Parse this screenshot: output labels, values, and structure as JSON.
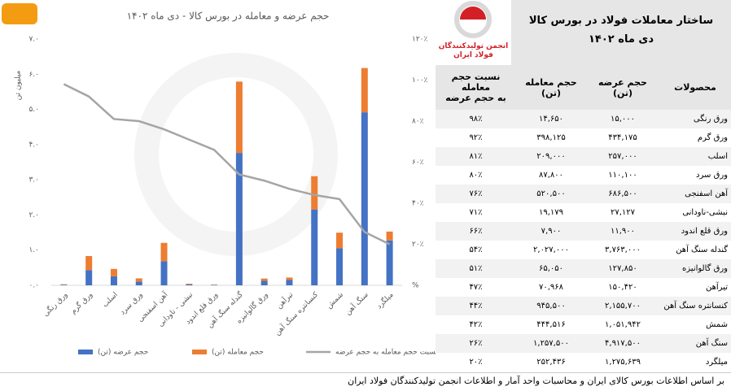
{
  "chart_data": {
    "type": "bar",
    "stacked": true,
    "title": "حجم عرضه و معامله در بورس کالا - دی ماه ۱۴۰۲",
    "ylabel": "میلیون تن",
    "categories": [
      "ورق رنگی",
      "ورق گرم",
      "اسلب",
      "ورق سرد",
      "آهن اسفنجی",
      "نبشی - ناودانی",
      "ورق قلع اندود",
      "گندله سنگ آهن",
      "ورق گالوانیزه",
      "تیرآهن",
      "کنسانتره سنگ آهن",
      "شمش",
      "سنگ آهن",
      "میلگرد"
    ],
    "series": [
      {
        "name": "حجم عرضه (تن)",
        "color": "#4472c4",
        "values": [
          0.015,
          0.434175,
          0.257,
          0.1101,
          0.6865,
          0.027127,
          0.0119,
          3.763,
          0.12785,
          0.15042,
          2.1557,
          1.051942,
          4.9175,
          1.275639
        ]
      },
      {
        "name": "حجم معامله (تن)",
        "color": "#ed7d31",
        "values": [
          0.01465,
          0.398125,
          0.209,
          0.0878,
          0.5205,
          0.019179,
          0.0079,
          2.027,
          0.06505,
          0.070968,
          0.9455,
          0.444516,
          1.2575,
          0.252436
        ]
      },
      {
        "name": "نسبت حجم معامله به حجم عرضه",
        "color": "#a5a5a5",
        "axis": "y2",
        "type": "line",
        "values": [
          98,
          92,
          81,
          80,
          76,
          71,
          66,
          54,
          51,
          47,
          44,
          42,
          26,
          20
        ]
      }
    ],
    "ylim": [
      0,
      7
    ],
    "yticks": [
      {
        "value": 0,
        "label": "۰.۰"
      },
      {
        "value": 1,
        "label": "۱.۰"
      },
      {
        "value": 2,
        "label": "۲.۰"
      },
      {
        "value": 3,
        "label": "۳.۰"
      },
      {
        "value": 4,
        "label": "۴.۰"
      },
      {
        "value": 5,
        "label": "۵.۰"
      },
      {
        "value": 6,
        "label": "۶.۰"
      },
      {
        "value": 7,
        "label": "۷.۰"
      }
    ],
    "y2lim": [
      0,
      120
    ],
    "y2ticks": [
      {
        "value": 0,
        "label": "%"
      },
      {
        "value": 20,
        "label": "۲۰٪"
      },
      {
        "value": 40,
        "label": "۴۰٪"
      },
      {
        "value": 60,
        "label": "۶۰٪"
      },
      {
        "value": 80,
        "label": "۸۰٪"
      },
      {
        "value": 100,
        "label": "۱۰۰٪"
      },
      {
        "value": 120,
        "label": "۱۲۰٪"
      }
    ],
    "grid": false
  },
  "logo": {
    "text": "انجمن تولیدکنندگان\nفولاد ایران"
  },
  "table": {
    "title": "ساختار معاملات فولاد در بورس کالا",
    "subtitle": "دی ماه ۱۴۰۲",
    "header": [
      "محصولات",
      "حجم عرضه\n(تن)",
      "حجم معامله\n(تن)",
      "نسبت حجم معامله\nبه حجم عرضه"
    ],
    "rows": [
      [
        "ورق رنگی",
        "۱۵,۰۰۰",
        "۱۴,۶۵۰",
        "۹۸٪"
      ],
      [
        "ورق گرم",
        "۴۳۴,۱۷۵",
        "۳۹۸,۱۲۵",
        "۹۲٪"
      ],
      [
        "اسلب",
        "۲۵۷,۰۰۰",
        "۲۰۹,۰۰۰",
        "۸۱٪"
      ],
      [
        "ورق سرد",
        "۱۱۰,۱۰۰",
        "۸۷,۸۰۰",
        "۸۰٪"
      ],
      [
        "آهن اسفنجی",
        "۶۸۶,۵۰۰",
        "۵۲۰,۵۰۰",
        "۷۶٪"
      ],
      [
        "نبشی-ناودانی",
        "۲۷,۱۲۷",
        "۱۹,۱۷۹",
        "۷۱٪"
      ],
      [
        "ورق قلع اندود",
        "۱۱,۹۰۰",
        "۷,۹۰۰",
        "۶۶٪"
      ],
      [
        "گندله سنگ آهن",
        "۳,۷۶۳,۰۰۰",
        "۲,۰۲۷,۰۰۰",
        "۵۴٪"
      ],
      [
        "ورق گالوانیزه",
        "۱۲۷,۸۵۰",
        "۶۵,۰۵۰",
        "۵۱٪"
      ],
      [
        "تیرآهن",
        "۱۵۰,۴۲۰",
        "۷۰,۹۶۸",
        "۴۷٪"
      ],
      [
        "کنسانتره سنگ آهن",
        "۲,۱۵۵,۷۰۰",
        "۹۴۵,۵۰۰",
        "۴۴٪"
      ],
      [
        "شمش",
        "۱,۰۵۱,۹۴۲",
        "۴۴۴,۵۱۶",
        "۴۲٪"
      ],
      [
        "سنگ آهن",
        "۴,۹۱۷,۵۰۰",
        "۱,۲۵۷,۵۰۰",
        "۲۶٪"
      ],
      [
        "میلگرد",
        "۱,۲۷۵,۶۳۹",
        "۲۵۲,۴۳۶",
        "۲۰٪"
      ]
    ]
  },
  "footer": "بر اساس اطلاعات بورس کالای ایران و محاسبات واحد آمار و اطلاعات انجمن تولیدکنندگان فولاد ایران"
}
